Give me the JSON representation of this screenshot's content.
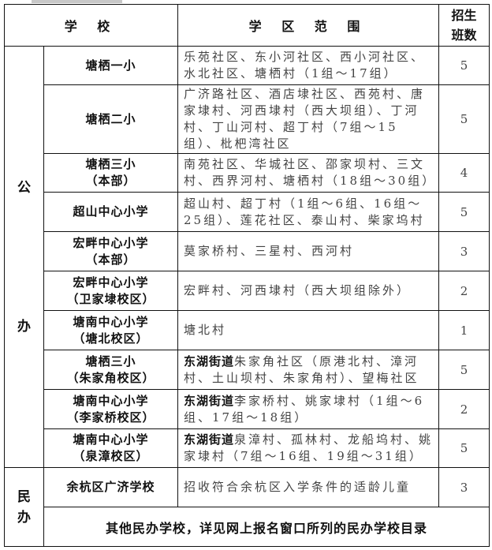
{
  "header": {
    "school": "学 校",
    "range": "学 区 范 围",
    "count_line1": "招生",
    "count_line2": "班数"
  },
  "categories": {
    "public": [
      "公",
      "办"
    ],
    "private": [
      "民",
      "办"
    ]
  },
  "rows": [
    {
      "school": [
        "塘栖一小"
      ],
      "bold": "",
      "range": "乐苑社区、东小河社区、西小河社区、水北社区、塘栖村（1组～17组）",
      "count": "5"
    },
    {
      "school": [
        "塘栖二小"
      ],
      "bold": "",
      "range": "广济路社区、酒店埭社区、西苑村、唐家埭村、河西埭村（西大坝组）、丁河村、丁山河村、超丁村（7组～15组）、枇杷湾社区",
      "count": "5"
    },
    {
      "school": [
        "塘栖三小",
        "（本部）"
      ],
      "bold": "",
      "range": "南苑社区、华城社区、邵家坝村、三文村、西界河村、塘栖村（18组～30组）",
      "count": "4"
    },
    {
      "school": [
        "超山中心小学"
      ],
      "bold": "",
      "range": "超山村、超丁村（1组～6组、16组～25组）、莲花社区、泰山村、柴家坞村",
      "count": "5"
    },
    {
      "school": [
        "宏畔中心小学",
        "（本部）"
      ],
      "bold": "",
      "range": "莫家桥村、三星村、西河村",
      "count": "3"
    },
    {
      "school": [
        "宏畔中心小学",
        "（卫家埭校区）"
      ],
      "bold": "",
      "range": "宏畔村、河西埭村（西大坝组除外）",
      "count": "2"
    },
    {
      "school": [
        "塘南中心小学",
        "（塘北校区）"
      ],
      "bold": "",
      "range": "塘北村",
      "count": "1"
    },
    {
      "school": [
        "塘栖三小",
        "（朱家角校区）"
      ],
      "bold": "东湖街道",
      "range": "朱家角社区（原港北村、漳河村、土山坝村、朱家角村）、望梅社区",
      "count": "5"
    },
    {
      "school": [
        "塘南中心小学",
        "（李家桥校区）"
      ],
      "bold": "东湖街道",
      "range": "李家桥村、姚家埭村（1组～6组、17组～18组）",
      "count": "2"
    },
    {
      "school": [
        "塘南中心小学",
        "（泉漳校区）"
      ],
      "bold": "东湖街道",
      "range": "泉漳村、孤林村、龙船坞村、姚家埭村（7组～16组、19组～31组）",
      "count": "5"
    }
  ],
  "private_row": {
    "school": "余杭区广济学校",
    "range": "招收符合余杭区入学条件的适龄儿童",
    "count": "3"
  },
  "footer": "其他民办学校，详见网上报名窗口所列的民办学校目录"
}
